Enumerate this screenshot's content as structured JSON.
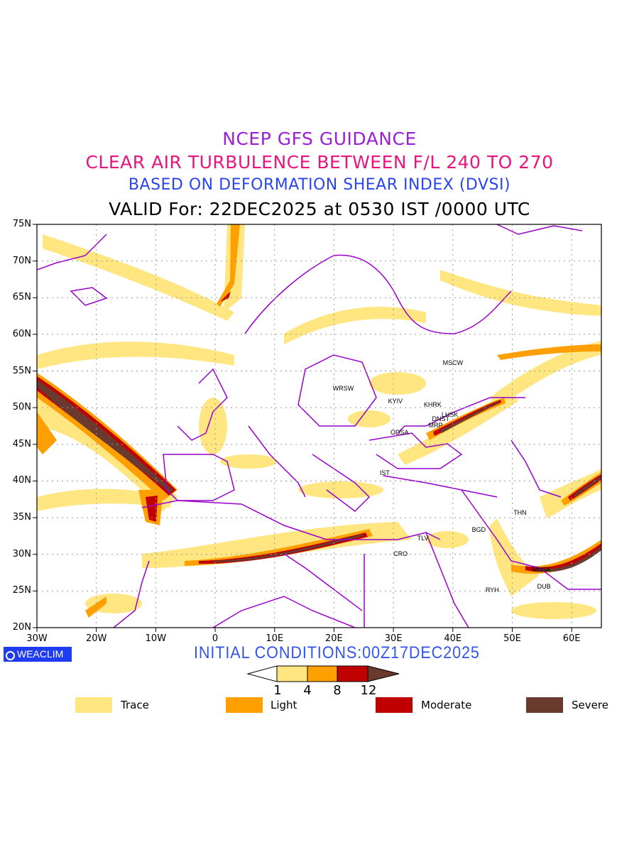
{
  "titles": {
    "line1": "NCEP GFS GUIDANCE",
    "line2": "CLEAR AIR TURBULENCE BETWEEN F/L 240 TO 270",
    "line3": "BASED ON DEFORMATION SHEAR INDEX (DVSI)",
    "line4": "VALID For: 22DEC2025 at 0530 IST /0000 UTC"
  },
  "colors": {
    "title1": "#9a1fd6",
    "title2": "#e8157e",
    "title3": "#2a44ee",
    "trace": "#ffe680",
    "light": "#ffa000",
    "moderate": "#c00000",
    "severe": "#6b3a2e",
    "borders": "#9900cc"
  },
  "axes": {
    "lat_labels": [
      "75N",
      "70N",
      "65N",
      "60N",
      "55N",
      "50N",
      "45N",
      "40N",
      "35N",
      "30N",
      "25N",
      "20N"
    ],
    "lon_labels": [
      "30W",
      "20W",
      "10W",
      "0",
      "10E",
      "20E",
      "30E",
      "40E",
      "50E",
      "60E"
    ]
  },
  "cities": [
    {
      "name": "MSCW",
      "lon": 39.5,
      "lat": 56
    },
    {
      "name": "WRSW",
      "lon": 21,
      "lat": 52.5
    },
    {
      "name": "KYIV",
      "lon": 30.3,
      "lat": 50.8
    },
    {
      "name": "KHRK",
      "lon": 36.3,
      "lat": 50.3
    },
    {
      "name": "LHSK",
      "lon": 39.3,
      "lat": 49
    },
    {
      "name": "DNST",
      "lon": 37.7,
      "lat": 48.4
    },
    {
      "name": "MRP",
      "lon": 37.1,
      "lat": 47.5
    },
    {
      "name": "ODSA",
      "lon": 30.7,
      "lat": 46.5
    },
    {
      "name": "IST",
      "lon": 28.9,
      "lat": 41
    },
    {
      "name": "THN",
      "lon": 51.4,
      "lat": 35.6
    },
    {
      "name": "BGD",
      "lon": 44.4,
      "lat": 33.3
    },
    {
      "name": "TLV",
      "lon": 35.2,
      "lat": 32.1
    },
    {
      "name": "CRO",
      "lon": 31.2,
      "lat": 30
    },
    {
      "name": "MNSK",
      "lon": 54.6,
      "lat": 27.8
    },
    {
      "name": "DUB",
      "lon": 55.4,
      "lat": 25.5
    },
    {
      "name": "RYH",
      "lon": 46.7,
      "lat": 25
    }
  ],
  "footer": {
    "logo": "WEACLIM",
    "initial_conditions": "INITIAL CONDITIONS:00Z17DEC2025"
  },
  "colorbar": {
    "ticks": [
      "1",
      "4",
      "8",
      "12"
    ]
  },
  "legend": [
    {
      "label": "Trace",
      "color": "#ffe680"
    },
    {
      "label": "Light",
      "color": "#ffa000"
    },
    {
      "label": "Moderate",
      "color": "#c00000"
    },
    {
      "label": "Severe",
      "color": "#6b3a2e"
    }
  ]
}
